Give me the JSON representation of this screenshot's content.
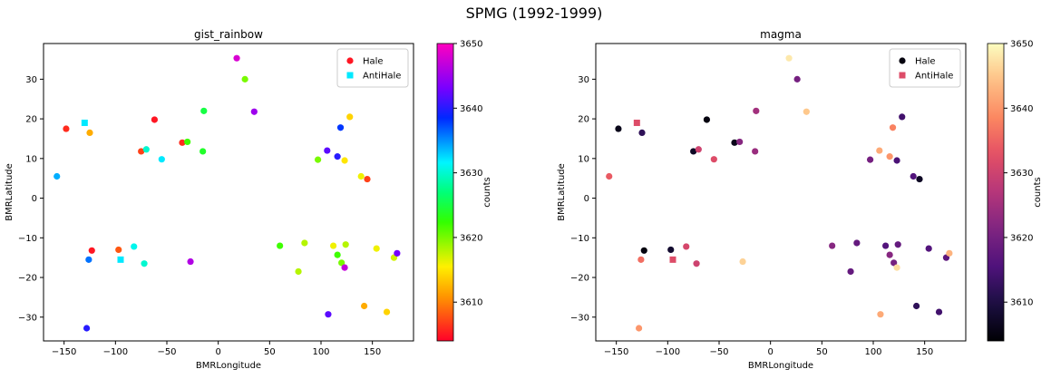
{
  "figure": {
    "suptitle": "SPMG (1992-1999)"
  },
  "chart_data": [
    {
      "type": "scatter",
      "title": "gist_rainbow",
      "colormap": "gist_rainbow",
      "xlabel": "BMRLongitude",
      "ylabel": "BMRLatitude",
      "xlim": [
        -170,
        190
      ],
      "ylim": [
        -36,
        39
      ],
      "xticks": [
        -150,
        -100,
        -50,
        0,
        50,
        100,
        150
      ],
      "yticks": [
        -30,
        -20,
        -10,
        0,
        10,
        20,
        30
      ],
      "grid": false,
      "legend": {
        "position": "top-right",
        "entries": [
          "Hale",
          "AntiHale"
        ]
      },
      "colorbar": {
        "label": "counts",
        "range": [
          3604,
          3650
        ],
        "ticks": [
          3610,
          3620,
          3630,
          3640,
          3650
        ]
      },
      "series": [
        {
          "name": "Hale",
          "marker": "circle",
          "points": [
            {
              "x": -148,
              "y": 17.5,
              "c": 3606
            },
            {
              "x": -125,
              "y": 16.5,
              "c": 3612
            },
            {
              "x": -62,
              "y": 19.8,
              "c": 3605
            },
            {
              "x": -75,
              "y": 11.8,
              "c": 3607
            },
            {
              "x": -35,
              "y": 14.0,
              "c": 3606
            },
            {
              "x": -30,
              "y": 14.2,
              "c": 3622
            },
            {
              "x": -14,
              "y": 22.0,
              "c": 3625
            },
            {
              "x": -15,
              "y": 11.8,
              "c": 3624
            },
            {
              "x": 18,
              "y": 35.3,
              "c": 3648
            },
            {
              "x": 26,
              "y": 30.0,
              "c": 3620
            },
            {
              "x": 35,
              "y": 21.8,
              "c": 3645
            },
            {
              "x": 97,
              "y": 9.7,
              "c": 3620
            },
            {
              "x": 106,
              "y": 12.0,
              "c": 3642
            },
            {
              "x": 116,
              "y": 10.5,
              "c": 3640
            },
            {
              "x": 119,
              "y": 17.8,
              "c": 3638
            },
            {
              "x": 123,
              "y": 9.5,
              "c": 3615
            },
            {
              "x": 128,
              "y": 20.5,
              "c": 3614
            },
            {
              "x": 139,
              "y": 5.5,
              "c": 3616
            },
            {
              "x": 145,
              "y": 4.8,
              "c": 3607
            },
            {
              "x": -55,
              "y": 9.8,
              "c": 3632
            },
            {
              "x": -70,
              "y": 12.3,
              "c": 3630
            },
            {
              "x": -157,
              "y": 5.5,
              "c": 3634
            },
            {
              "x": -123,
              "y": -13.2,
              "c": 3605
            },
            {
              "x": -126,
              "y": -15.5,
              "c": 3636
            },
            {
              "x": -97,
              "y": -13.0,
              "c": 3608
            },
            {
              "x": -82,
              "y": -12.2,
              "c": 3631
            },
            {
              "x": -72,
              "y": -16.5,
              "c": 3630
            },
            {
              "x": -27,
              "y": -16.0,
              "c": 3646
            },
            {
              "x": 60,
              "y": -12.0,
              "c": 3622
            },
            {
              "x": 78,
              "y": -18.5,
              "c": 3618
            },
            {
              "x": 84,
              "y": -11.3,
              "c": 3618
            },
            {
              "x": 107,
              "y": -29.3,
              "c": 3642
            },
            {
              "x": 112,
              "y": -12.0,
              "c": 3616
            },
            {
              "x": 116,
              "y": -14.3,
              "c": 3622
            },
            {
              "x": 120,
              "y": -16.3,
              "c": 3620
            },
            {
              "x": 123,
              "y": -17.5,
              "c": 3647
            },
            {
              "x": 124,
              "y": -11.7,
              "c": 3618
            },
            {
              "x": 142,
              "y": -27.2,
              "c": 3612
            },
            {
              "x": 154,
              "y": -12.7,
              "c": 3616
            },
            {
              "x": 164,
              "y": -28.7,
              "c": 3614
            },
            {
              "x": 171,
              "y": -15.0,
              "c": 3617
            },
            {
              "x": 174,
              "y": -13.9,
              "c": 3643
            },
            {
              "x": -128,
              "y": -32.8,
              "c": 3640
            }
          ]
        },
        {
          "name": "AntiHale",
          "marker": "square",
          "points": [
            {
              "x": -130,
              "y": 19.0,
              "c": 3632
            },
            {
              "x": -95,
              "y": -15.5,
              "c": 3632
            }
          ]
        }
      ]
    },
    {
      "type": "scatter",
      "title": "magma",
      "colormap": "magma",
      "xlabel": "BMRLongitude",
      "ylabel": "BMRLatitude",
      "xlim": [
        -170,
        190
      ],
      "ylim": [
        -36,
        39
      ],
      "xticks": [
        -150,
        -100,
        -50,
        0,
        50,
        100,
        150
      ],
      "yticks": [
        -30,
        -20,
        -10,
        0,
        10,
        20,
        30
      ],
      "grid": false,
      "legend": {
        "position": "top-right",
        "entries": [
          "Hale",
          "AntiHale"
        ]
      },
      "colorbar": {
        "label": "counts",
        "range": [
          3604,
          3650
        ],
        "ticks": [
          3610,
          3620,
          3630,
          3640,
          3650
        ]
      },
      "series": [
        {
          "name": "Hale",
          "marker": "circle",
          "points": [
            {
              "x": -148,
              "y": 17.5,
              "c": 3606
            },
            {
              "x": -125,
              "y": 16.5,
              "c": 3612
            },
            {
              "x": -62,
              "y": 19.8,
              "c": 3605
            },
            {
              "x": -75,
              "y": 11.8,
              "c": 3607
            },
            {
              "x": -35,
              "y": 14.0,
              "c": 3606
            },
            {
              "x": -30,
              "y": 14.2,
              "c": 3622
            },
            {
              "x": -14,
              "y": 22.0,
              "c": 3625
            },
            {
              "x": -15,
              "y": 11.8,
              "c": 3624
            },
            {
              "x": 18,
              "y": 35.3,
              "c": 3648
            },
            {
              "x": 26,
              "y": 30.0,
              "c": 3620
            },
            {
              "x": 35,
              "y": 21.8,
              "c": 3645
            },
            {
              "x": 97,
              "y": 9.7,
              "c": 3620
            },
            {
              "x": 106,
              "y": 12.0,
              "c": 3642
            },
            {
              "x": 116,
              "y": 10.5,
              "c": 3640
            },
            {
              "x": 119,
              "y": 17.8,
              "c": 3638
            },
            {
              "x": 123,
              "y": 9.5,
              "c": 3615
            },
            {
              "x": 128,
              "y": 20.5,
              "c": 3614
            },
            {
              "x": 139,
              "y": 5.5,
              "c": 3616
            },
            {
              "x": 145,
              "y": 4.8,
              "c": 3607
            },
            {
              "x": -55,
              "y": 9.8,
              "c": 3632
            },
            {
              "x": -70,
              "y": 12.3,
              "c": 3630
            },
            {
              "x": -157,
              "y": 5.5,
              "c": 3634
            },
            {
              "x": -123,
              "y": -13.2,
              "c": 3605
            },
            {
              "x": -126,
              "y": -15.5,
              "c": 3636
            },
            {
              "x": -97,
              "y": -13.0,
              "c": 3608
            },
            {
              "x": -82,
              "y": -12.2,
              "c": 3631
            },
            {
              "x": -72,
              "y": -16.5,
              "c": 3630
            },
            {
              "x": -27,
              "y": -16.0,
              "c": 3646
            },
            {
              "x": 60,
              "y": -12.0,
              "c": 3622
            },
            {
              "x": 78,
              "y": -18.5,
              "c": 3618
            },
            {
              "x": 84,
              "y": -11.3,
              "c": 3618
            },
            {
              "x": 107,
              "y": -29.3,
              "c": 3642
            },
            {
              "x": 112,
              "y": -12.0,
              "c": 3616
            },
            {
              "x": 116,
              "y": -14.3,
              "c": 3622
            },
            {
              "x": 120,
              "y": -16.3,
              "c": 3620
            },
            {
              "x": 123,
              "y": -17.5,
              "c": 3647
            },
            {
              "x": 124,
              "y": -11.7,
              "c": 3618
            },
            {
              "x": 142,
              "y": -27.2,
              "c": 3612
            },
            {
              "x": 154,
              "y": -12.7,
              "c": 3616
            },
            {
              "x": 164,
              "y": -28.7,
              "c": 3614
            },
            {
              "x": 171,
              "y": -15.0,
              "c": 3617
            },
            {
              "x": 174,
              "y": -13.9,
              "c": 3643
            },
            {
              "x": -128,
              "y": -32.8,
              "c": 3640
            }
          ]
        },
        {
          "name": "AntiHale",
          "marker": "square",
          "points": [
            {
              "x": -130,
              "y": 19.0,
              "c": 3632
            },
            {
              "x": -95,
              "y": -15.5,
              "c": 3632
            }
          ]
        }
      ]
    }
  ]
}
